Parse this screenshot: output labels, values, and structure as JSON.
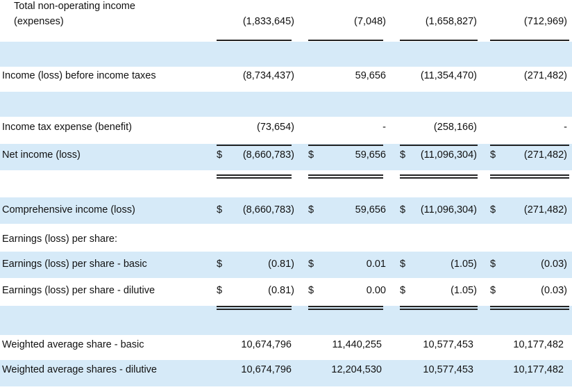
{
  "rows": {
    "total_non_operating": {
      "label_line1": "Total non-operating income",
      "label_line2": "(expenses)",
      "values": [
        "(1,833,645)",
        "(7,048)",
        "(1,658,827)",
        "(712,969)"
      ]
    },
    "income_before_taxes": {
      "label": "Income (loss) before income taxes",
      "values": [
        "(8,734,437)",
        "59,656",
        "(11,354,470)",
        "(271,482)"
      ]
    },
    "income_tax": {
      "label": "Income tax expense (benefit)",
      "values": [
        "(73,654)",
        "-",
        "(258,166)",
        "-"
      ]
    },
    "net_income": {
      "label": "Net income (loss)",
      "currency": "$",
      "values": [
        "(8,660,783)",
        "59,656",
        "(11,096,304)",
        "(271,482)"
      ]
    },
    "comprehensive_income": {
      "label": "Comprehensive income (loss)",
      "currency": "$",
      "values": [
        "(8,660,783)",
        "59,656",
        "(11,096,304)",
        "(271,482)"
      ]
    },
    "eps_header": {
      "label": "Earnings (loss) per share:"
    },
    "eps_basic": {
      "label": "Earnings (loss) per share - basic",
      "currency": "$",
      "values": [
        "(0.81)",
        "0.01",
        "(1.05)",
        "(0.03)"
      ]
    },
    "eps_dilutive": {
      "label": "Earnings (loss) per share - dilutive",
      "currency": "$",
      "values": [
        "(0.81)",
        "0.00",
        "(1.05)",
        "(0.03)"
      ]
    },
    "weighted_basic": {
      "label": "Weighted average share - basic",
      "values": [
        "10,674,796",
        "11,440,255",
        "10,577,453",
        "10,177,482"
      ]
    },
    "weighted_dilutive": {
      "label": "Weighted average shares - dilutive",
      "values": [
        "10,674,796",
        "12,204,530",
        "10,577,453",
        "10,177,482"
      ]
    }
  }
}
